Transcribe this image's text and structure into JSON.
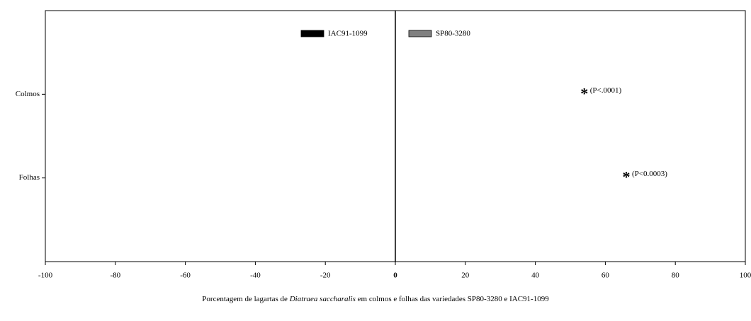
{
  "chart_data": {
    "type": "bar",
    "orientation": "horizontal",
    "title_parts": [
      "Porcentagem de lagartas de ",
      "Diatraea saccharalis",
      " em colmos e folhas das variedades SP80-3280 e IAC91-1099"
    ],
    "categories": [
      "Colmos",
      "Folhas"
    ],
    "series": [
      {
        "name": "IAC91-1099",
        "color": "#000000"
      },
      {
        "name": "SP80-3280",
        "color": "#808080"
      }
    ],
    "xlim": [
      -100,
      100
    ],
    "xticks": [
      -100,
      -80,
      -60,
      -40,
      -20,
      0,
      20,
      40,
      60,
      80,
      100
    ],
    "annotations": [
      {
        "marker": "*",
        "text": "(P<.0001)",
        "category": "Colmos",
        "x": 54
      },
      {
        "marker": "*",
        "text": "(P<0.0003)",
        "category": "Folhas",
        "x": 66
      }
    ]
  }
}
